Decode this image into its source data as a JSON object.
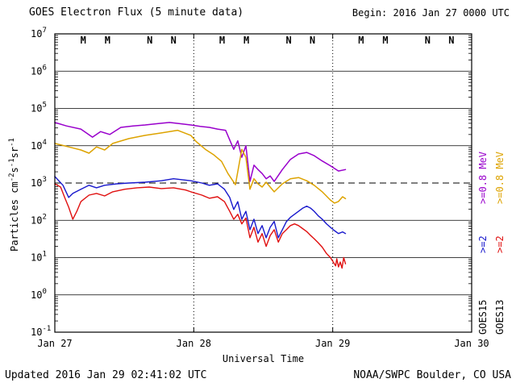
{
  "header": {
    "title": "GOES Electron Flux (5 minute data)",
    "begin_label": "Begin: 2016 Jan 27 0000 UTC"
  },
  "footer": {
    "updated": "Updated 2016 Jan 29 02:41:02 UTC",
    "source": "NOAA/SWPC Boulder, CO USA"
  },
  "colors": {
    "goes15_e08": "#9900cc",
    "goes13_e08": "#dda300",
    "goes15_e2": "#1818cc",
    "goes13_e2": "#e01010",
    "marker_midnight_east": "#cc0000",
    "marker_blue": "#000099",
    "axis": "#000000"
  },
  "legend": {
    "columns": [
      {
        "name": "goes15-legend",
        "segments": [
          {
            "text": "GOES15",
            "color": "#000000"
          },
          {
            "text": ">=2",
            "color": "#1818cc"
          },
          {
            "text": ">=0.8 MeV",
            "color": "#9900cc"
          }
        ]
      },
      {
        "name": "goes13-legend",
        "segments": [
          {
            "text": "GOES13",
            "color": "#000000"
          },
          {
            "text": ">=2",
            "color": "#e01010"
          },
          {
            "text": ">=0.8 MeV",
            "color": "#dda300"
          }
        ]
      }
    ]
  },
  "chart_data": {
    "type": "line",
    "title": "GOES Electron Flux (5 minute data)",
    "xlabel": "Universal Time",
    "ylabel_segments": [
      {
        "text": "Particles cm"
      },
      {
        "text": "-2",
        "sup": true
      },
      {
        "text": "s"
      },
      {
        "text": "-1",
        "sup": true
      },
      {
        "text": "sr"
      },
      {
        "text": "-1",
        "sup": true
      }
    ],
    "x_axis": {
      "range_hours": [
        0,
        72
      ],
      "ticks": [
        {
          "hour": 0,
          "label": "Jan 27"
        },
        {
          "hour": 24,
          "label": "Jan 28"
        },
        {
          "hour": 48,
          "label": "Jan 29"
        },
        {
          "hour": 72,
          "label": "Jan 30"
        }
      ],
      "day_boundaries_hours": [
        24,
        48
      ]
    },
    "y_axis": {
      "scale": "log",
      "min_exp": -1,
      "max_exp": 7,
      "tick_exponents": [
        7,
        6,
        5,
        4,
        3,
        2,
        1,
        0,
        -1
      ]
    },
    "threshold": {
      "value": 1000,
      "style": "dashed"
    },
    "markers": [
      {
        "hour": 4.9,
        "label": "M",
        "color": "#cc0000"
      },
      {
        "hour": 9.1,
        "label": "M",
        "color": "#000099"
      },
      {
        "hour": 16.4,
        "label": "N",
        "color": "#cc0000"
      },
      {
        "hour": 20.5,
        "label": "N",
        "color": "#000099"
      },
      {
        "hour": 28.9,
        "label": "M",
        "color": "#cc0000"
      },
      {
        "hour": 33.1,
        "label": "M",
        "color": "#000099"
      },
      {
        "hour": 40.4,
        "label": "N",
        "color": "#cc0000"
      },
      {
        "hour": 44.5,
        "label": "N",
        "color": "#000099"
      },
      {
        "hour": 52.9,
        "label": "M",
        "color": "#cc0000"
      },
      {
        "hour": 57.1,
        "label": "M",
        "color": "#000099"
      },
      {
        "hour": 64.4,
        "label": "N",
        "color": "#cc0000"
      },
      {
        "hour": 68.5,
        "label": "N",
        "color": "#000099"
      }
    ],
    "series": [
      {
        "name": "GOES15 >=0.8 MeV",
        "color": "#9900cc",
        "width": 1.5,
        "points": [
          [
            0,
            42000
          ],
          [
            2,
            34000
          ],
          [
            4.5,
            28000
          ],
          [
            6.5,
            17000
          ],
          [
            7.9,
            24000
          ],
          [
            9.5,
            20000
          ],
          [
            11.4,
            31000
          ],
          [
            13.5,
            34000
          ],
          [
            15.6,
            36000
          ],
          [
            17.7,
            39000
          ],
          [
            19.8,
            42000
          ],
          [
            21.6,
            39000
          ],
          [
            23.5,
            36000
          ],
          [
            25.1,
            33000
          ],
          [
            26.7,
            31000
          ],
          [
            28.1,
            28000
          ],
          [
            29.5,
            26000
          ],
          [
            30.9,
            8000
          ],
          [
            31.6,
            13500
          ],
          [
            32.3,
            4900
          ],
          [
            33,
            10000
          ],
          [
            33.7,
            1100
          ],
          [
            34.4,
            3000
          ],
          [
            35.1,
            2300
          ],
          [
            35.8,
            1800
          ],
          [
            36.5,
            1300
          ],
          [
            37.2,
            1550
          ],
          [
            37.9,
            1100
          ],
          [
            39.3,
            2300
          ],
          [
            40.7,
            4300
          ],
          [
            42.1,
            6000
          ],
          [
            43.5,
            6600
          ],
          [
            44.8,
            5400
          ],
          [
            46.2,
            3900
          ],
          [
            47.6,
            2900
          ],
          [
            49,
            2100
          ],
          [
            50.2,
            2300
          ]
        ]
      },
      {
        "name": "GOES13 >=0.8 MeV",
        "color": "#dda300",
        "width": 1.5,
        "points": [
          [
            0,
            11500
          ],
          [
            2.4,
            9300
          ],
          [
            4.5,
            7700
          ],
          [
            5.9,
            6300
          ],
          [
            7.2,
            9300
          ],
          [
            8.6,
            7700
          ],
          [
            10,
            11500
          ],
          [
            12.8,
            15500
          ],
          [
            15.6,
            19000
          ],
          [
            18.4,
            22000
          ],
          [
            21.2,
            26000
          ],
          [
            23.5,
            19000
          ],
          [
            24.4,
            13000
          ],
          [
            26,
            8000
          ],
          [
            27.4,
            5800
          ],
          [
            28.8,
            3800
          ],
          [
            29.9,
            1800
          ],
          [
            31.2,
            900
          ],
          [
            32.3,
            8000
          ],
          [
            33,
            4900
          ],
          [
            33.7,
            680
          ],
          [
            34.4,
            1300
          ],
          [
            35.1,
            950
          ],
          [
            35.8,
            780
          ],
          [
            36.5,
            1050
          ],
          [
            37.2,
            780
          ],
          [
            37.9,
            580
          ],
          [
            39.3,
            950
          ],
          [
            40.7,
            1300
          ],
          [
            42.1,
            1400
          ],
          [
            43.5,
            1150
          ],
          [
            44.8,
            870
          ],
          [
            46.2,
            580
          ],
          [
            47.6,
            350
          ],
          [
            48.3,
            290
          ],
          [
            49,
            320
          ],
          [
            49.7,
            430
          ],
          [
            50.2,
            380
          ]
        ]
      },
      {
        "name": "GOES15 >=2 MeV",
        "color": "#1818cc",
        "width": 1.4,
        "points": [
          [
            0,
            1500
          ],
          [
            1.4,
            870
          ],
          [
            2.4,
            410
          ],
          [
            3.1,
            525
          ],
          [
            4.5,
            680
          ],
          [
            5.9,
            870
          ],
          [
            7.2,
            745
          ],
          [
            8.6,
            870
          ],
          [
            10.7,
            950
          ],
          [
            12.8,
            1000
          ],
          [
            15.6,
            1050
          ],
          [
            18.4,
            1150
          ],
          [
            20.5,
            1300
          ],
          [
            23.5,
            1150
          ],
          [
            25.4,
            1000
          ],
          [
            26.7,
            870
          ],
          [
            28.1,
            950
          ],
          [
            29.3,
            680
          ],
          [
            30.2,
            410
          ],
          [
            30.9,
            195
          ],
          [
            31.6,
            316
          ],
          [
            32.3,
            107
          ],
          [
            33,
            174
          ],
          [
            33.7,
            56
          ],
          [
            34.4,
            107
          ],
          [
            35.1,
            44
          ],
          [
            35.8,
            72
          ],
          [
            36.5,
            34
          ],
          [
            37.2,
            65
          ],
          [
            37.9,
            93
          ],
          [
            38.6,
            34
          ],
          [
            39.3,
            56
          ],
          [
            40,
            92
          ],
          [
            40.7,
            120
          ],
          [
            42.1,
            174
          ],
          [
            42.8,
            210
          ],
          [
            43.5,
            240
          ],
          [
            44.2,
            210
          ],
          [
            44.8,
            174
          ],
          [
            45.5,
            132
          ],
          [
            46.2,
            107
          ],
          [
            46.9,
            81
          ],
          [
            47.6,
            65
          ],
          [
            48.3,
            53
          ],
          [
            49,
            44
          ],
          [
            49.7,
            49
          ],
          [
            50.2,
            44
          ]
        ]
      },
      {
        "name": "GOES13 >=2 MeV",
        "color": "#e01010",
        "width": 1.4,
        "points": [
          [
            0,
            950
          ],
          [
            1,
            780
          ],
          [
            1.7,
            410
          ],
          [
            2.4,
            225
          ],
          [
            3.1,
            107
          ],
          [
            3.8,
            174
          ],
          [
            4.5,
            316
          ],
          [
            5.9,
            475
          ],
          [
            7.2,
            525
          ],
          [
            8.6,
            450
          ],
          [
            10,
            580
          ],
          [
            12.1,
            680
          ],
          [
            14.2,
            745
          ],
          [
            16.3,
            780
          ],
          [
            18.4,
            710
          ],
          [
            20.5,
            745
          ],
          [
            22.6,
            650
          ],
          [
            23.5,
            580
          ],
          [
            25.4,
            475
          ],
          [
            26.7,
            390
          ],
          [
            28.1,
            430
          ],
          [
            29.3,
            316
          ],
          [
            30.2,
            174
          ],
          [
            30.9,
            107
          ],
          [
            31.6,
            145
          ],
          [
            32.3,
            80
          ],
          [
            33,
            115
          ],
          [
            33.7,
            34
          ],
          [
            34.4,
            65
          ],
          [
            35.1,
            26
          ],
          [
            35.8,
            44
          ],
          [
            36.5,
            20
          ],
          [
            37.2,
            39
          ],
          [
            37.9,
            56
          ],
          [
            38.6,
            26
          ],
          [
            39.3,
            44
          ],
          [
            40,
            56
          ],
          [
            40.7,
            72
          ],
          [
            41.4,
            80
          ],
          [
            42.1,
            72
          ],
          [
            42.8,
            60
          ],
          [
            43.5,
            50
          ],
          [
            44.2,
            39
          ],
          [
            44.8,
            32
          ],
          [
            45.5,
            25
          ],
          [
            46.2,
            19
          ],
          [
            46.9,
            13
          ],
          [
            47.6,
            10
          ],
          [
            48,
            8
          ],
          [
            48.5,
            6
          ],
          [
            48.7,
            9.3
          ],
          [
            49,
            5.6
          ],
          [
            49.3,
            7.6
          ],
          [
            49.6,
            5.2
          ],
          [
            49.9,
            10
          ],
          [
            50.2,
            6.8
          ]
        ]
      }
    ]
  }
}
